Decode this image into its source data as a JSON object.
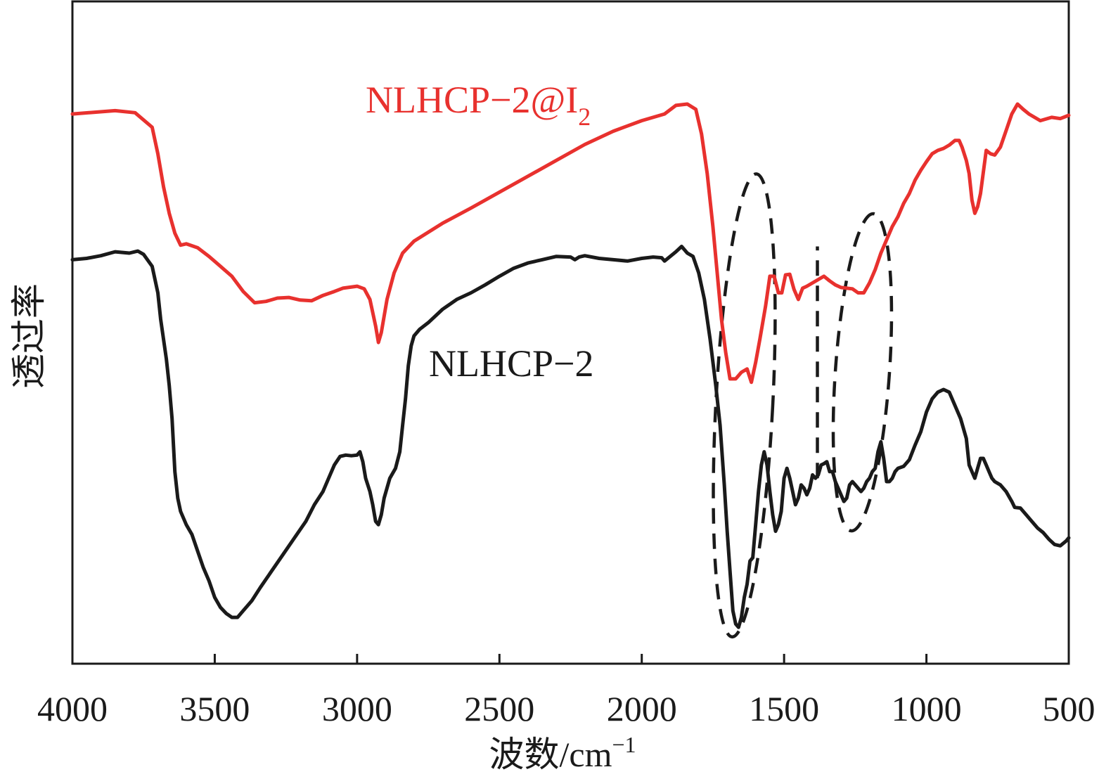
{
  "chart_data": {
    "type": "line",
    "title": "",
    "xlabel": "波数/cm",
    "xlabel_sup": "−1",
    "ylabel": "透过率",
    "xlim": [
      4000,
      500
    ],
    "x_reversed": true,
    "y_ticks_shown": false,
    "grid": false,
    "legend": "none (inline labels)",
    "x_ticks": [
      4000,
      3500,
      3000,
      2500,
      2000,
      1500,
      1000,
      500
    ],
    "x_tick_labels": [
      "4000",
      "3500",
      "3000",
      "2500",
      "2000",
      "1500",
      "1000",
      "500"
    ],
    "series": [
      {
        "name": "NLHCP−2@I",
        "name_sub": "2",
        "color": "#e8312e",
        "points": [
          [
            4000,
            0.83
          ],
          [
            3850,
            0.835
          ],
          [
            3780,
            0.832
          ],
          [
            3720,
            0.81
          ],
          [
            3700,
            0.77
          ],
          [
            3680,
            0.72
          ],
          [
            3660,
            0.68
          ],
          [
            3640,
            0.65
          ],
          [
            3620,
            0.632
          ],
          [
            3600,
            0.634
          ],
          [
            3560,
            0.628
          ],
          [
            3520,
            0.615
          ],
          [
            3480,
            0.6
          ],
          [
            3440,
            0.585
          ],
          [
            3400,
            0.562
          ],
          [
            3360,
            0.545
          ],
          [
            3320,
            0.547
          ],
          [
            3280,
            0.552
          ],
          [
            3240,
            0.553
          ],
          [
            3200,
            0.549
          ],
          [
            3160,
            0.548
          ],
          [
            3120,
            0.556
          ],
          [
            3080,
            0.562
          ],
          [
            3050,
            0.567
          ],
          [
            3000,
            0.57
          ],
          [
            2975,
            0.566
          ],
          [
            2955,
            0.55
          ],
          [
            2935,
            0.51
          ],
          [
            2925,
            0.485
          ],
          [
            2915,
            0.5
          ],
          [
            2895,
            0.55
          ],
          [
            2870,
            0.59
          ],
          [
            2840,
            0.62
          ],
          [
            2800,
            0.638
          ],
          [
            2700,
            0.665
          ],
          [
            2600,
            0.688
          ],
          [
            2500,
            0.712
          ],
          [
            2400,
            0.736
          ],
          [
            2300,
            0.76
          ],
          [
            2200,
            0.784
          ],
          [
            2100,
            0.804
          ],
          [
            2000,
            0.82
          ],
          [
            1920,
            0.83
          ],
          [
            1880,
            0.843
          ],
          [
            1840,
            0.845
          ],
          [
            1810,
            0.837
          ],
          [
            1790,
            0.8
          ],
          [
            1770,
            0.74
          ],
          [
            1750,
            0.66
          ],
          [
            1735,
            0.59
          ],
          [
            1720,
            0.52
          ],
          [
            1705,
            0.47
          ],
          [
            1690,
            0.43
          ],
          [
            1670,
            0.43
          ],
          [
            1650,
            0.44
          ],
          [
            1630,
            0.445
          ],
          [
            1615,
            0.425
          ],
          [
            1600,
            0.455
          ],
          [
            1585,
            0.49
          ],
          [
            1565,
            0.54
          ],
          [
            1550,
            0.585
          ],
          [
            1535,
            0.585
          ],
          [
            1520,
            0.56
          ],
          [
            1508,
            0.56
          ],
          [
            1495,
            0.587
          ],
          [
            1480,
            0.588
          ],
          [
            1465,
            0.565
          ],
          [
            1450,
            0.55
          ],
          [
            1435,
            0.567
          ],
          [
            1420,
            0.57
          ],
          [
            1400,
            0.575
          ],
          [
            1380,
            0.58
          ],
          [
            1360,
            0.585
          ],
          [
            1340,
            0.578
          ],
          [
            1320,
            0.572
          ],
          [
            1300,
            0.568
          ],
          [
            1280,
            0.567
          ],
          [
            1260,
            0.566
          ],
          [
            1240,
            0.56
          ],
          [
            1220,
            0.56
          ],
          [
            1200,
            0.575
          ],
          [
            1180,
            0.595
          ],
          [
            1160,
            0.62
          ],
          [
            1140,
            0.64
          ],
          [
            1120,
            0.66
          ],
          [
            1100,
            0.675
          ],
          [
            1080,
            0.695
          ],
          [
            1060,
            0.71
          ],
          [
            1040,
            0.73
          ],
          [
            1020,
            0.745
          ],
          [
            1000,
            0.758
          ],
          [
            980,
            0.77
          ],
          [
            960,
            0.775
          ],
          [
            940,
            0.778
          ],
          [
            920,
            0.783
          ],
          [
            900,
            0.79
          ],
          [
            885,
            0.79
          ],
          [
            875,
            0.78
          ],
          [
            860,
            0.76
          ],
          [
            850,
            0.74
          ],
          [
            840,
            0.7
          ],
          [
            830,
            0.68
          ],
          [
            820,
            0.69
          ],
          [
            810,
            0.71
          ],
          [
            790,
            0.775
          ],
          [
            775,
            0.77
          ],
          [
            760,
            0.768
          ],
          [
            740,
            0.78
          ],
          [
            720,
            0.805
          ],
          [
            700,
            0.83
          ],
          [
            680,
            0.845
          ],
          [
            660,
            0.837
          ],
          [
            640,
            0.83
          ],
          [
            600,
            0.82
          ],
          [
            560,
            0.825
          ],
          [
            530,
            0.823
          ],
          [
            500,
            0.828
          ]
        ]
      },
      {
        "name": "NLHCP−2",
        "color": "#1a1a1a",
        "points": [
          [
            4000,
            0.61
          ],
          [
            3950,
            0.612
          ],
          [
            3900,
            0.616
          ],
          [
            3850,
            0.622
          ],
          [
            3800,
            0.62
          ],
          [
            3770,
            0.623
          ],
          [
            3750,
            0.618
          ],
          [
            3720,
            0.6
          ],
          [
            3700,
            0.56
          ],
          [
            3690,
            0.52
          ],
          [
            3670,
            0.46
          ],
          [
            3660,
            0.42
          ],
          [
            3650,
            0.37
          ],
          [
            3640,
            0.29
          ],
          [
            3630,
            0.25
          ],
          [
            3620,
            0.23
          ],
          [
            3600,
            0.21
          ],
          [
            3580,
            0.195
          ],
          [
            3560,
            0.17
          ],
          [
            3540,
            0.145
          ],
          [
            3520,
            0.125
          ],
          [
            3500,
            0.1
          ],
          [
            3480,
            0.085
          ],
          [
            3460,
            0.076
          ],
          [
            3440,
            0.07
          ],
          [
            3420,
            0.07
          ],
          [
            3400,
            0.08
          ],
          [
            3370,
            0.095
          ],
          [
            3340,
            0.115
          ],
          [
            3300,
            0.14
          ],
          [
            3260,
            0.165
          ],
          [
            3220,
            0.19
          ],
          [
            3180,
            0.215
          ],
          [
            3150,
            0.24
          ],
          [
            3120,
            0.26
          ],
          [
            3100,
            0.28
          ],
          [
            3080,
            0.3
          ],
          [
            3060,
            0.313
          ],
          [
            3040,
            0.315
          ],
          [
            3020,
            0.314
          ],
          [
            3000,
            0.315
          ],
          [
            2990,
            0.32
          ],
          [
            2980,
            0.305
          ],
          [
            2970,
            0.28
          ],
          [
            2955,
            0.26
          ],
          [
            2945,
            0.24
          ],
          [
            2935,
            0.215
          ],
          [
            2925,
            0.21
          ],
          [
            2915,
            0.225
          ],
          [
            2905,
            0.25
          ],
          [
            2885,
            0.28
          ],
          [
            2865,
            0.295
          ],
          [
            2850,
            0.32
          ],
          [
            2840,
            0.36
          ],
          [
            2830,
            0.4
          ],
          [
            2820,
            0.45
          ],
          [
            2810,
            0.48
          ],
          [
            2800,
            0.495
          ],
          [
            2780,
            0.505
          ],
          [
            2750,
            0.515
          ],
          [
            2700,
            0.535
          ],
          [
            2650,
            0.55
          ],
          [
            2600,
            0.56
          ],
          [
            2550,
            0.572
          ],
          [
            2500,
            0.585
          ],
          [
            2450,
            0.597
          ],
          [
            2400,
            0.605
          ],
          [
            2350,
            0.61
          ],
          [
            2300,
            0.615
          ],
          [
            2250,
            0.614
          ],
          [
            2235,
            0.61
          ],
          [
            2220,
            0.614
          ],
          [
            2200,
            0.616
          ],
          [
            2150,
            0.612
          ],
          [
            2100,
            0.61
          ],
          [
            2050,
            0.608
          ],
          [
            2000,
            0.612
          ],
          [
            1960,
            0.614
          ],
          [
            1930,
            0.613
          ],
          [
            1920,
            0.608
          ],
          [
            1900,
            0.615
          ],
          [
            1880,
            0.622
          ],
          [
            1860,
            0.63
          ],
          [
            1840,
            0.62
          ],
          [
            1820,
            0.615
          ],
          [
            1800,
            0.59
          ],
          [
            1780,
            0.55
          ],
          [
            1760,
            0.49
          ],
          [
            1740,
            0.42
          ],
          [
            1725,
            0.36
          ],
          [
            1710,
            0.27
          ],
          [
            1700,
            0.2
          ],
          [
            1690,
            0.14
          ],
          [
            1680,
            0.08
          ],
          [
            1670,
            0.06
          ],
          [
            1660,
            0.055
          ],
          [
            1650,
            0.07
          ],
          [
            1640,
            0.1
          ],
          [
            1630,
            0.12
          ],
          [
            1620,
            0.155
          ],
          [
            1610,
            0.16
          ],
          [
            1600,
            0.21
          ],
          [
            1590,
            0.26
          ],
          [
            1580,
            0.3
          ],
          [
            1570,
            0.32
          ],
          [
            1560,
            0.3
          ],
          [
            1550,
            0.26
          ],
          [
            1540,
            0.225
          ],
          [
            1530,
            0.2
          ],
          [
            1520,
            0.21
          ],
          [
            1510,
            0.23
          ],
          [
            1500,
            0.28
          ],
          [
            1490,
            0.295
          ],
          [
            1480,
            0.28
          ],
          [
            1470,
            0.26
          ],
          [
            1460,
            0.24
          ],
          [
            1450,
            0.25
          ],
          [
            1440,
            0.27
          ],
          [
            1430,
            0.265
          ],
          [
            1420,
            0.255
          ],
          [
            1410,
            0.265
          ],
          [
            1400,
            0.285
          ],
          [
            1390,
            0.28
          ],
          [
            1380,
            0.285
          ],
          [
            1370,
            0.3
          ],
          [
            1360,
            0.302
          ],
          [
            1350,
            0.305
          ],
          [
            1340,
            0.29
          ],
          [
            1330,
            0.29
          ],
          [
            1320,
            0.275
          ],
          [
            1300,
            0.255
          ],
          [
            1290,
            0.245
          ],
          [
            1280,
            0.25
          ],
          [
            1270,
            0.27
          ],
          [
            1260,
            0.275
          ],
          [
            1250,
            0.27
          ],
          [
            1240,
            0.265
          ],
          [
            1230,
            0.26
          ],
          [
            1220,
            0.265
          ],
          [
            1210,
            0.275
          ],
          [
            1200,
            0.28
          ],
          [
            1190,
            0.29
          ],
          [
            1180,
            0.295
          ],
          [
            1170,
            0.32
          ],
          [
            1160,
            0.335
          ],
          [
            1150,
            0.31
          ],
          [
            1140,
            0.275
          ],
          [
            1130,
            0.275
          ],
          [
            1120,
            0.28
          ],
          [
            1110,
            0.29
          ],
          [
            1100,
            0.295
          ],
          [
            1080,
            0.298
          ],
          [
            1060,
            0.308
          ],
          [
            1040,
            0.33
          ],
          [
            1020,
            0.35
          ],
          [
            1000,
            0.38
          ],
          [
            980,
            0.4
          ],
          [
            960,
            0.41
          ],
          [
            940,
            0.414
          ],
          [
            920,
            0.41
          ],
          [
            900,
            0.39
          ],
          [
            880,
            0.37
          ],
          [
            860,
            0.34
          ],
          [
            850,
            0.3
          ],
          [
            840,
            0.29
          ],
          [
            830,
            0.28
          ],
          [
            820,
            0.295
          ],
          [
            810,
            0.31
          ],
          [
            800,
            0.31
          ],
          [
            790,
            0.3
          ],
          [
            780,
            0.29
          ],
          [
            770,
            0.28
          ],
          [
            760,
            0.275
          ],
          [
            740,
            0.27
          ],
          [
            720,
            0.26
          ],
          [
            700,
            0.245
          ],
          [
            690,
            0.236
          ],
          [
            670,
            0.235
          ],
          [
            650,
            0.225
          ],
          [
            630,
            0.215
          ],
          [
            610,
            0.205
          ],
          [
            590,
            0.198
          ],
          [
            570,
            0.188
          ],
          [
            550,
            0.18
          ],
          [
            530,
            0.178
          ],
          [
            510,
            0.185
          ],
          [
            500,
            0.19
          ]
        ]
      }
    ],
    "annotations": [
      {
        "shape": "dashed-ellipse",
        "center": [
          1640,
          0.39
        ],
        "rx": 100,
        "ry": 0.35,
        "tilt_deg": 3
      },
      {
        "shape": "dashed-ellipse",
        "center": [
          1225,
          0.44
        ],
        "rx": 95,
        "ry": 0.24,
        "tilt_deg": 4
      },
      {
        "shape": "dashed-line",
        "x": 1383,
        "y": [
          0.28,
          0.63
        ]
      }
    ]
  }
}
